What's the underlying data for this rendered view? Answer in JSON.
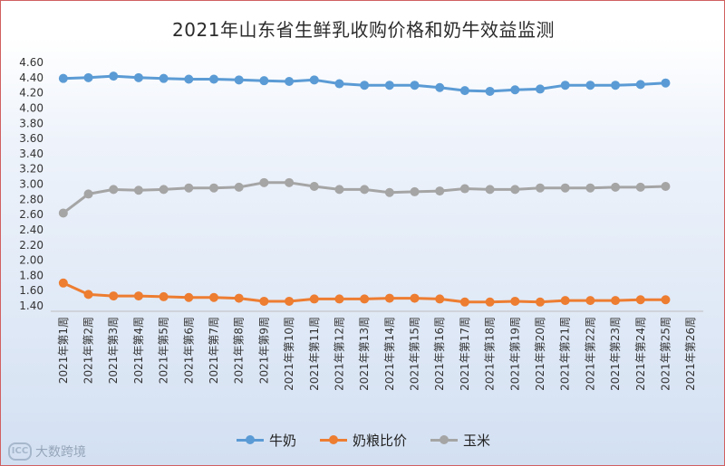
{
  "watermark": {
    "text": "大数跨境",
    "logo_text": "ICC"
  },
  "colors": {
    "series": [
      "#5b9bd5",
      "#ed7d31",
      "#a5a5a5"
    ]
  },
  "chart_data": {
    "type": "line",
    "title": "2021年山东省生鲜乳收购价格和奶牛效益监测",
    "xlabel": "",
    "ylabel": "",
    "ylim": [
      1.4,
      4.6
    ],
    "ystep": 0.2,
    "yticks": [
      "1.40",
      "1.60",
      "1.80",
      "2.00",
      "2.20",
      "2.40",
      "2.60",
      "2.80",
      "3.00",
      "3.20",
      "3.40",
      "3.60",
      "3.80",
      "4.00",
      "4.20",
      "4.40",
      "4.60"
    ],
    "grid": false,
    "legend_position": "bottom",
    "categories": [
      "2021年第1周",
      "2021年第2周",
      "2021年第3周",
      "2021年第4周",
      "2021年第5周",
      "2021年第6周",
      "2021年第7周",
      "2021年第8周",
      "2021年第9周",
      "2021年第10周",
      "2021年第11周",
      "2021年第12周",
      "2021年第13周",
      "2021年第14周",
      "2021年第15周",
      "2021年第16周",
      "2021年第17周",
      "2021年第18周",
      "2021年第19周",
      "2021年第20周",
      "2021年第21周",
      "2021年第22周",
      "2021年第23周",
      "2021年第24周",
      "2021年第25周",
      "2021年第26周"
    ],
    "series": [
      {
        "name": "牛奶",
        "values": [
          4.39,
          4.4,
          4.42,
          4.4,
          4.39,
          4.38,
          4.38,
          4.37,
          4.36,
          4.35,
          4.37,
          4.32,
          4.3,
          4.3,
          4.3,
          4.27,
          4.23,
          4.22,
          4.24,
          4.25,
          4.3,
          4.3,
          4.3,
          4.31,
          4.33,
          null
        ]
      },
      {
        "name": "奶粮比价",
        "values": [
          1.7,
          1.55,
          1.53,
          1.53,
          1.52,
          1.51,
          1.51,
          1.5,
          1.46,
          1.46,
          1.49,
          1.49,
          1.49,
          1.5,
          1.5,
          1.49,
          1.45,
          1.45,
          1.46,
          1.45,
          1.47,
          1.47,
          1.47,
          1.48,
          1.48,
          null
        ]
      },
      {
        "name": "玉米",
        "values": [
          2.62,
          2.87,
          2.93,
          2.92,
          2.93,
          2.95,
          2.95,
          2.96,
          3.02,
          3.02,
          2.97,
          2.93,
          2.93,
          2.89,
          2.9,
          2.91,
          2.94,
          2.93,
          2.93,
          2.95,
          2.95,
          2.95,
          2.96,
          2.96,
          2.97,
          null
        ]
      }
    ]
  }
}
